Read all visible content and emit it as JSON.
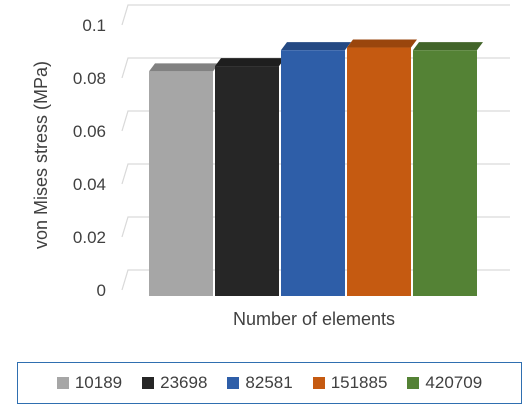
{
  "chart_data": {
    "type": "bar",
    "ylabel": "von Mises stress (MPa)",
    "xlabel": "Number of elements",
    "ylim": [
      0,
      0.1
    ],
    "yticks": [
      "0",
      "0.02",
      "0.04",
      "0.06",
      "0.08",
      "0.1"
    ],
    "grid": true,
    "legend_position": "bottom",
    "series": [
      {
        "name": "10189",
        "value": 0.0825,
        "color": "#a6a6a6"
      },
      {
        "name": "23698",
        "value": 0.0845,
        "color": "#262626"
      },
      {
        "name": "82581",
        "value": 0.0905,
        "color": "#2e5ea8"
      },
      {
        "name": "151885",
        "value": 0.0915,
        "color": "#c55a11"
      },
      {
        "name": "420709",
        "value": 0.0905,
        "color": "#548235"
      }
    ]
  }
}
